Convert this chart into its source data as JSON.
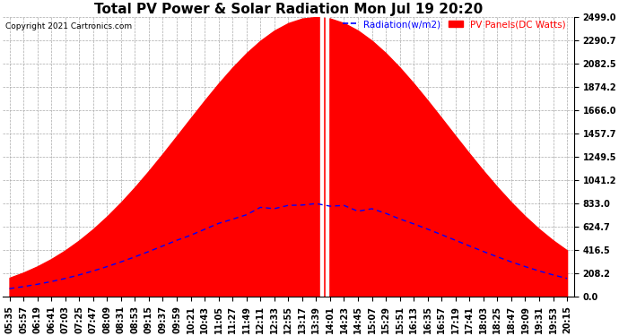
{
  "title": "Total PV Power & Solar Radiation Mon Jul 19 20:20",
  "copyright": "Copyright 2021 Cartronics.com",
  "legend_radiation": "Radiation(w/m2)",
  "legend_pv": "PV Panels(DC Watts)",
  "ylabel_right_ticks": [
    0.0,
    208.2,
    416.5,
    624.7,
    833.0,
    1041.2,
    1249.5,
    1457.7,
    1666.0,
    1874.2,
    2082.5,
    2290.7,
    2499.0
  ],
  "ymax": 2499.0,
  "ymin": 0.0,
  "bg_color": "#ffffff",
  "grid_color": "#aaaaaa",
  "pv_fill_color": "#ff0000",
  "radiation_line_color": "#0000ff",
  "title_fontsize": 11,
  "tick_fontsize": 7,
  "x_tick_labels": [
    "05:35",
    "05:57",
    "06:19",
    "06:41",
    "07:03",
    "07:25",
    "07:47",
    "08:09",
    "08:31",
    "08:53",
    "09:15",
    "09:37",
    "09:59",
    "10:21",
    "10:43",
    "11:05",
    "11:27",
    "11:49",
    "12:11",
    "12:33",
    "12:55",
    "13:17",
    "13:39",
    "14:01",
    "14:23",
    "14:45",
    "15:07",
    "15:29",
    "15:51",
    "16:13",
    "16:35",
    "16:57",
    "17:19",
    "17:41",
    "18:03",
    "18:25",
    "18:47",
    "19:09",
    "19:31",
    "19:53",
    "20:15"
  ],
  "pv_peak_idx": 22,
  "pv_sigma": 9.5,
  "pv_max": 2499.0,
  "rad_peak_idx": 22,
  "rad_sigma": 10.0,
  "rad_max": 833.0,
  "spike_indices": [
    22,
    23
  ],
  "spike_values": [
    2499.0,
    2499.0
  ]
}
